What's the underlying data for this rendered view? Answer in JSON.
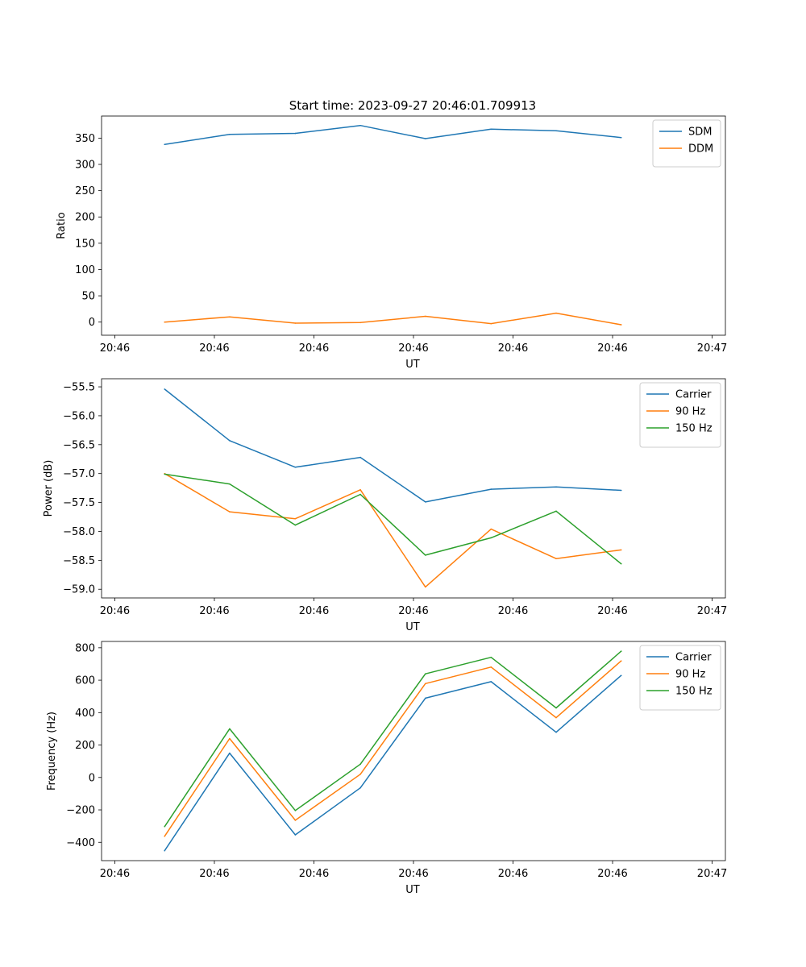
{
  "figure": {
    "title": "Start time: 2023-09-27 20:46:01.709913"
  },
  "chart_data": [
    {
      "type": "line",
      "ylabel": "Ratio",
      "xlabel": "UT",
      "xlim": [
        0,
        9.4
      ],
      "ylim": [
        -25,
        392
      ],
      "x_ticks": [
        0.2,
        1.7,
        3.2,
        4.7,
        6.2,
        7.7,
        9.2
      ],
      "x_tick_labels": [
        "20:46",
        "20:46",
        "20:46",
        "20:46",
        "20:46",
        "20:46",
        "20:47"
      ],
      "y_ticks": [
        0,
        50,
        100,
        150,
        200,
        250,
        300,
        350
      ],
      "y_tick_labels": [
        "0",
        "50",
        "100",
        "150",
        "200",
        "250",
        "300",
        "350"
      ],
      "legend_position": "top-right",
      "x": [
        0.95,
        1.93,
        2.92,
        3.9,
        4.88,
        5.87,
        6.85,
        7.83
      ],
      "series": [
        {
          "name": "SDM",
          "color": "#1f77b4",
          "values": [
            338,
            357,
            359,
            374,
            349,
            367,
            364,
            351
          ]
        },
        {
          "name": "DDM",
          "color": "#ff7f0e",
          "values": [
            0,
            10,
            -2,
            -1,
            11,
            -3,
            17,
            -5
          ]
        }
      ]
    },
    {
      "type": "line",
      "ylabel": "Power (dB)",
      "xlabel": "UT",
      "xlim": [
        0,
        9.4
      ],
      "ylim": [
        -59.15,
        -55.36
      ],
      "x_ticks": [
        0.2,
        1.7,
        3.2,
        4.7,
        6.2,
        7.7,
        9.2
      ],
      "x_tick_labels": [
        "20:46",
        "20:46",
        "20:46",
        "20:46",
        "20:46",
        "20:46",
        "20:47"
      ],
      "y_ticks": [
        -55.5,
        -56.0,
        -56.5,
        -57.0,
        -57.5,
        -58.0,
        -58.5,
        -59.0
      ],
      "y_tick_labels": [
        "−55.5",
        "−56.0",
        "−56.5",
        "−57.0",
        "−57.5",
        "−58.0",
        "−58.5",
        "−59.0"
      ],
      "legend_position": "top-right",
      "x": [
        0.95,
        1.93,
        2.92,
        3.9,
        4.88,
        5.87,
        6.85,
        7.83
      ],
      "series": [
        {
          "name": "Carrier",
          "color": "#1f77b4",
          "values": [
            -55.54,
            -56.43,
            -56.89,
            -56.72,
            -57.49,
            -57.27,
            -57.23,
            -57.29
          ]
        },
        {
          "name": "90 Hz",
          "color": "#ff7f0e",
          "values": [
            -57.0,
            -57.66,
            -57.78,
            -57.28,
            -58.96,
            -57.96,
            -58.47,
            -58.32
          ]
        },
        {
          "name": "150 Hz",
          "color": "#2ca02c",
          "values": [
            -57.01,
            -57.18,
            -57.89,
            -57.36,
            -58.41,
            -58.11,
            -57.65,
            -58.56
          ]
        }
      ]
    },
    {
      "type": "line",
      "ylabel": "Frequency (Hz)",
      "xlabel": "UT",
      "xlim": [
        0,
        9.4
      ],
      "ylim": [
        -513,
        839
      ],
      "x_ticks": [
        0.2,
        1.7,
        3.2,
        4.7,
        6.2,
        7.7,
        9.2
      ],
      "x_tick_labels": [
        "20:46",
        "20:46",
        "20:46",
        "20:46",
        "20:46",
        "20:46",
        "20:47"
      ],
      "y_ticks": [
        -400,
        -200,
        0,
        200,
        400,
        600,
        800
      ],
      "y_tick_labels": [
        "−400",
        "−200",
        "0",
        "200",
        "400",
        "600",
        "800"
      ],
      "legend_position": "top-right",
      "x": [
        0.95,
        1.93,
        2.92,
        3.9,
        4.88,
        5.87,
        6.85,
        7.83
      ],
      "series": [
        {
          "name": "Carrier",
          "color": "#1f77b4",
          "values": [
            -452,
            150,
            -354,
            -64,
            489,
            591,
            279,
            629
          ]
        },
        {
          "name": "90 Hz",
          "color": "#ff7f0e",
          "values": [
            -363,
            240,
            -264,
            20,
            579,
            681,
            369,
            719
          ]
        },
        {
          "name": "150 Hz",
          "color": "#2ca02c",
          "values": [
            -303,
            300,
            -204,
            82,
            639,
            741,
            429,
            779
          ]
        }
      ]
    }
  ]
}
